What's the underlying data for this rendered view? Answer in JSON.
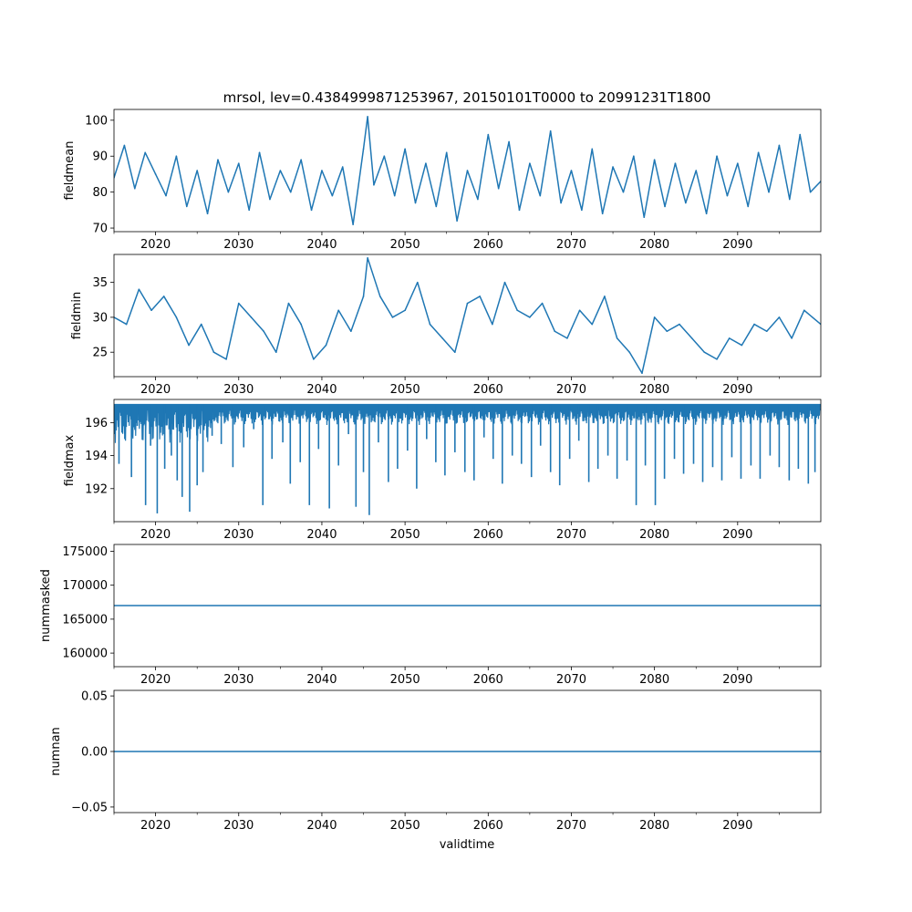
{
  "figure": {
    "title": "mrsol, lev=0.4384999871253967, 20150101T0000 to 20991231T1800",
    "xlabel": "validtime"
  },
  "colors": {
    "line": "#1f77b4",
    "axes": "#000000",
    "background": "#ffffff"
  },
  "chart_data": [
    {
      "type": "line",
      "name": "fieldmean",
      "ylabel": "fieldmean",
      "xlim": [
        2015.0,
        2100.0
      ],
      "ylim": [
        69.0,
        103.0
      ],
      "x_ticks": [
        2020,
        2030,
        2040,
        2050,
        2060,
        2070,
        2080,
        2090
      ],
      "y_ticks": [
        70,
        80,
        90,
        100
      ],
      "series": [
        {
          "name": "fieldmean",
          "x": [
            2015.0,
            2016.25,
            2017.5,
            2018.75,
            2020.0,
            2021.25,
            2022.5,
            2023.75,
            2025.0,
            2026.25,
            2027.5,
            2028.75,
            2030.0,
            2031.25,
            2032.5,
            2033.75,
            2035.0,
            2036.25,
            2037.5,
            2038.75,
            2040.0,
            2041.25,
            2042.5,
            2043.75,
            2045.0,
            2045.5,
            2046.25,
            2047.5,
            2048.75,
            2050.0,
            2051.25,
            2052.5,
            2053.75,
            2055.0,
            2056.25,
            2057.5,
            2058.75,
            2060.0,
            2061.25,
            2062.5,
            2063.75,
            2065.0,
            2066.25,
            2067.5,
            2068.75,
            2070.0,
            2071.25,
            2072.5,
            2073.75,
            2075.0,
            2076.25,
            2077.5,
            2078.75,
            2080.0,
            2081.25,
            2082.5,
            2083.75,
            2085.0,
            2086.25,
            2087.5,
            2088.75,
            2090.0,
            2091.25,
            2092.5,
            2093.75,
            2095.0,
            2096.25,
            2097.5,
            2098.75,
            2100.0
          ],
          "y": [
            84,
            93,
            81,
            91,
            85,
            79,
            90,
            76,
            86,
            74,
            89,
            80,
            88,
            75,
            91,
            78,
            86,
            80,
            89,
            75,
            86,
            79,
            87,
            71,
            92,
            101,
            82,
            90,
            79,
            92,
            77,
            88,
            76,
            91,
            72,
            86,
            78,
            96,
            81,
            94,
            75,
            88,
            79,
            97,
            77,
            86,
            75,
            92,
            74,
            87,
            80,
            90,
            73,
            89,
            76,
            88,
            77,
            86,
            74,
            90,
            79,
            88,
            76,
            91,
            80,
            93,
            78,
            96,
            80,
            83
          ]
        }
      ]
    },
    {
      "type": "line",
      "name": "fieldmin",
      "ylabel": "fieldmin",
      "xlim": [
        2015.0,
        2100.0
      ],
      "ylim": [
        21.5,
        39.0
      ],
      "x_ticks": [
        2020,
        2030,
        2040,
        2050,
        2060,
        2070,
        2080,
        2090
      ],
      "y_ticks": [
        25,
        30,
        35
      ],
      "series": [
        {
          "name": "fieldmin",
          "x": [
            2015.0,
            2016.5,
            2018.0,
            2019.5,
            2021.0,
            2022.5,
            2024.0,
            2025.5,
            2027.0,
            2028.5,
            2030.0,
            2031.5,
            2033.0,
            2034.5,
            2036.0,
            2037.5,
            2039.0,
            2040.5,
            2042.0,
            2043.5,
            2045.0,
            2045.5,
            2047.0,
            2048.5,
            2050.0,
            2051.5,
            2053.0,
            2054.5,
            2056.0,
            2057.5,
            2059.0,
            2060.5,
            2062.0,
            2063.5,
            2065.0,
            2066.5,
            2068.0,
            2069.5,
            2071.0,
            2072.5,
            2074.0,
            2075.5,
            2077.0,
            2078.5,
            2080.0,
            2081.5,
            2083.0,
            2084.5,
            2086.0,
            2087.5,
            2089.0,
            2090.5,
            2092.0,
            2093.5,
            2095.0,
            2096.5,
            2098.0,
            2100.0
          ],
          "y": [
            30,
            29,
            34,
            31,
            33,
            30,
            26,
            29,
            25,
            24,
            32,
            30,
            28,
            25,
            32,
            29,
            24,
            26,
            31,
            28,
            33,
            38.5,
            33,
            30,
            31,
            35,
            29,
            27,
            25,
            32,
            33,
            29,
            35,
            31,
            30,
            32,
            28,
            27,
            31,
            29,
            33,
            27,
            25,
            22,
            30,
            28,
            29,
            27,
            25,
            24,
            27,
            26,
            29,
            28,
            30,
            27,
            31,
            29
          ]
        }
      ]
    },
    {
      "type": "line",
      "name": "fieldmax",
      "ylabel": "fieldmax",
      "xlim": [
        2015.0,
        2100.0
      ],
      "ylim": [
        190.0,
        197.4
      ],
      "x_ticks": [
        2020,
        2030,
        2040,
        2050,
        2060,
        2070,
        2080,
        2090
      ],
      "y_ticks": [
        192,
        194,
        196
      ],
      "series": [
        {
          "name": "fieldmax",
          "ceiling": 197.05,
          "dips": {
            "x": [
              2015.6,
              2016.3,
              2017.1,
              2017.8,
              2018.8,
              2019.4,
              2020.2,
              2021.1,
              2021.9,
              2022.6,
              2023.2,
              2024.1,
              2025.0,
              2025.7,
              2026.8,
              2027.9,
              2029.3,
              2030.6,
              2031.8,
              2032.9,
              2034.0,
              2035.3,
              2036.2,
              2037.4,
              2038.5,
              2039.6,
              2040.9,
              2042.0,
              2043.2,
              2044.1,
              2045.0,
              2045.7,
              2046.8,
              2048.0,
              2049.1,
              2050.3,
              2051.4,
              2052.6,
              2053.7,
              2054.8,
              2056.0,
              2057.2,
              2058.3,
              2059.5,
              2060.6,
              2061.7,
              2062.9,
              2064.0,
              2065.2,
              2066.3,
              2067.5,
              2068.6,
              2069.8,
              2070.9,
              2072.1,
              2073.2,
              2074.4,
              2075.5,
              2076.7,
              2077.8,
              2078.9,
              2080.1,
              2081.2,
              2082.4,
              2083.5,
              2084.7,
              2085.8,
              2087.0,
              2088.1,
              2089.3,
              2090.4,
              2091.6,
              2092.7,
              2093.9,
              2095.0,
              2096.2,
              2097.3,
              2098.5,
              2099.3
            ],
            "y": [
              193.5,
              195.0,
              192.7,
              195.8,
              191.0,
              194.6,
              190.5,
              193.2,
              194.0,
              192.5,
              191.5,
              190.6,
              192.2,
              193.0,
              195.2,
              194.7,
              193.3,
              194.5,
              195.6,
              191.0,
              193.8,
              194.8,
              192.3,
              193.6,
              191.0,
              194.4,
              190.8,
              193.4,
              195.3,
              190.9,
              193.0,
              190.4,
              194.8,
              192.4,
              193.2,
              194.3,
              192.0,
              195.0,
              193.6,
              192.8,
              194.2,
              193.0,
              192.5,
              195.1,
              193.8,
              192.3,
              194.0,
              193.5,
              192.7,
              194.6,
              193.0,
              192.2,
              193.8,
              194.9,
              192.4,
              193.2,
              194.0,
              192.6,
              193.7,
              191.0,
              193.4,
              191.0,
              192.6,
              193.8,
              192.9,
              193.5,
              192.4,
              193.3,
              192.5,
              193.9,
              192.6,
              193.4,
              192.6,
              194.0,
              193.3,
              192.5,
              193.2,
              192.3,
              193.0
            ]
          }
        }
      ]
    },
    {
      "type": "line",
      "name": "nummasked",
      "ylabel": "nummasked",
      "xlim": [
        2015.0,
        2100.0
      ],
      "ylim": [
        158000,
        176000
      ],
      "x_ticks": [
        2020,
        2030,
        2040,
        2050,
        2060,
        2070,
        2080,
        2090
      ],
      "y_ticks": [
        160000,
        165000,
        170000,
        175000
      ],
      "series": [
        {
          "name": "nummasked",
          "x": [
            2015.0,
            2100.0
          ],
          "y": [
            167000,
            167000
          ]
        }
      ]
    },
    {
      "type": "line",
      "name": "numnan",
      "ylabel": "numnan",
      "xlim": [
        2015.0,
        2100.0
      ],
      "ylim": [
        -0.055,
        0.055
      ],
      "x_ticks": [
        2020,
        2030,
        2040,
        2050,
        2060,
        2070,
        2080,
        2090
      ],
      "y_ticks": [
        -0.05,
        0.0,
        0.05
      ],
      "y_tick_labels": [
        "−0.05",
        "0.00",
        "0.05"
      ],
      "series": [
        {
          "name": "numnan",
          "x": [
            2015.0,
            2100.0
          ],
          "y": [
            0.0,
            0.0
          ]
        }
      ]
    }
  ]
}
